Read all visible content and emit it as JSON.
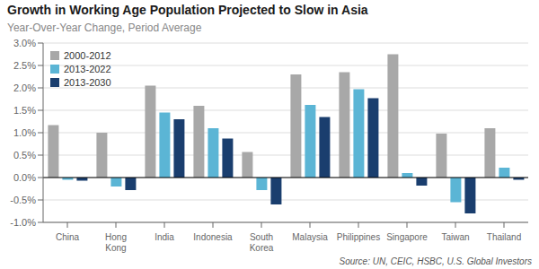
{
  "chart_data": {
    "type": "bar",
    "title": "Growth in Working Age Population Projected to Slow in Asia",
    "subtitle": "Year-Over-Year Change, Period Average",
    "annotations": [
      "Source: UN, CEIC, HSBC, U.S. Global Investors"
    ],
    "categories": [
      "China",
      "Hong\nKong",
      "India",
      "Indonesia",
      "South\nKorea",
      "Malaysia",
      "Philippines",
      "Singapore",
      "Taiwan",
      "Thailand"
    ],
    "series": [
      {
        "name": "2000-2012",
        "color": "#a8a8a8",
        "values": [
          1.17,
          1.0,
          2.05,
          1.6,
          0.57,
          2.3,
          2.35,
          2.75,
          0.98,
          1.1
        ]
      },
      {
        "name": "2013-2022",
        "color": "#5bb5d5",
        "values": [
          -0.05,
          -0.2,
          1.45,
          1.1,
          -0.28,
          1.62,
          1.97,
          0.1,
          -0.55,
          0.22
        ]
      },
      {
        "name": "2013-2030",
        "color": "#1a3e6e",
        "values": [
          -0.07,
          -0.28,
          1.3,
          0.87,
          -0.6,
          1.35,
          1.77,
          -0.18,
          -0.8,
          -0.05
        ]
      }
    ],
    "ylim": [
      -1.0,
      3.0
    ],
    "yticks": [
      {
        "value": -1.0,
        "label": "-1.0%"
      },
      {
        "value": -0.5,
        "label": "-0.5%"
      },
      {
        "value": 0.0,
        "label": "0.0%"
      },
      {
        "value": 0.5,
        "label": "0.5%"
      },
      {
        "value": 1.0,
        "label": "1.0%"
      },
      {
        "value": 1.5,
        "label": "1.5%"
      },
      {
        "value": 2.0,
        "label": "2.0%"
      },
      {
        "value": 2.5,
        "label": "2.5%"
      },
      {
        "value": 3.0,
        "label": "3.0%"
      }
    ],
    "grid": true,
    "legend": "upper left"
  }
}
